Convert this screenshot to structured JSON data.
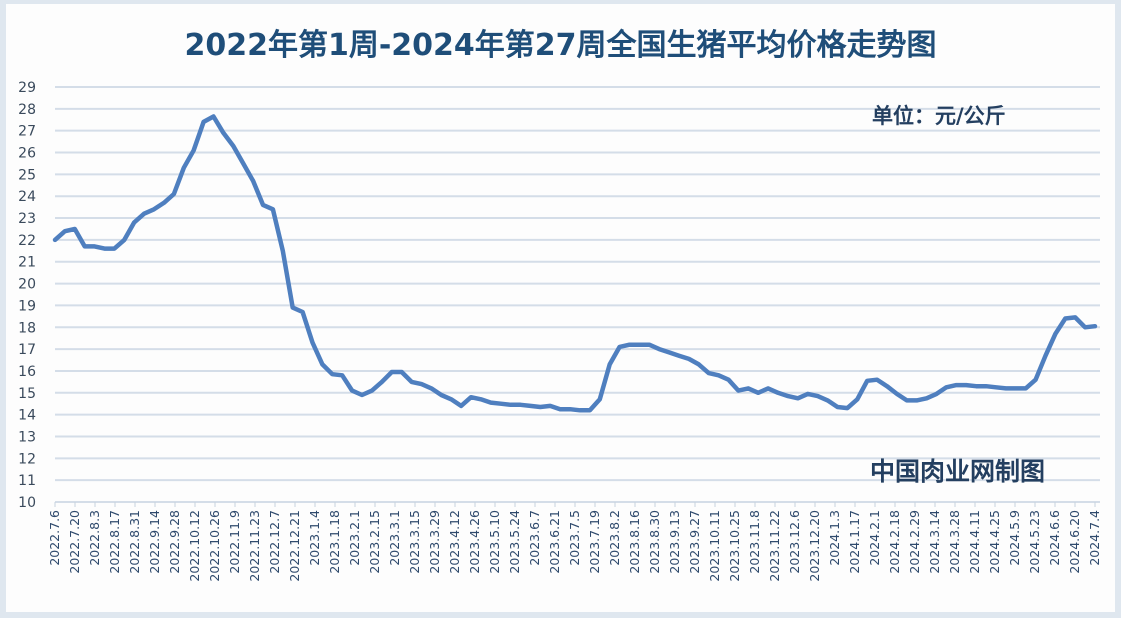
{
  "chart_data": {
    "type": "line",
    "title": "2022年第1周-2024年第27周全国生猪平均价格走势图",
    "unit_label": "单位：元/公斤",
    "source_label": "中国肉业网制图",
    "xlabel": "",
    "ylabel": "元/公斤",
    "ylim": [
      10,
      29
    ],
    "yticks": [
      10,
      11,
      12,
      13,
      14,
      15,
      16,
      17,
      18,
      19,
      20,
      21,
      22,
      23,
      24,
      25,
      26,
      27,
      28,
      29
    ],
    "grid": true,
    "legend": null,
    "line_color": "#4f7fbf",
    "x_tick_labels": [
      "2022.7.6",
      "2022.7.20",
      "2022.8.3",
      "2022.8.17",
      "2022.8.31",
      "2022.9.14",
      "2022.9.28",
      "2022.10.12",
      "2022.10.26",
      "2022.11.9",
      "2022.11.23",
      "2022.12.7",
      "2022.12.21",
      "2023.1.4",
      "2023.1.18",
      "2023.2.1",
      "2023.2.15",
      "2023.3.1",
      "2023.3.15",
      "2023.3.29",
      "2023.4.12",
      "2023.4.26",
      "2023.5.10",
      "2023.5.24",
      "2023.6.7",
      "2023.6.21",
      "2023.7.5",
      "2023.7.19",
      "2023.8.2",
      "2023.8.16",
      "2023.8.30",
      "2023.9.13",
      "2023.9.27",
      "2023.10.11",
      "2023.10.25",
      "2023.11.8",
      "2023.11.22",
      "2023.12.6",
      "2023.12.20",
      "2024.1.3",
      "2024.1.17",
      "2024.2.1",
      "2024.2.18",
      "2024.2.29",
      "2024.3.14",
      "2024.3.28",
      "2024.4.11",
      "2024.4.25",
      "2024.5.9",
      "2024.5.23",
      "2024.6.6",
      "2024.6.20",
      "2024.7.4"
    ],
    "series": [
      {
        "name": "全国生猪平均价格",
        "values": [
          22.0,
          22.4,
          22.5,
          21.7,
          21.7,
          21.6,
          21.6,
          22.0,
          22.8,
          23.2,
          23.4,
          23.7,
          24.1,
          25.3,
          26.1,
          27.4,
          27.65,
          26.9,
          26.3,
          25.5,
          24.7,
          23.6,
          23.4,
          21.5,
          18.9,
          18.7,
          17.3,
          16.3,
          15.85,
          15.8,
          15.1,
          14.9,
          15.1,
          15.5,
          15.95,
          15.95,
          15.5,
          15.4,
          15.2,
          14.9,
          14.7,
          14.4,
          14.8,
          14.7,
          14.55,
          14.5,
          14.45,
          14.45,
          14.4,
          14.35,
          14.4,
          14.25,
          14.25,
          14.2,
          14.2,
          14.7,
          16.3,
          17.1,
          17.2,
          17.2,
          17.2,
          17.0,
          16.85,
          16.7,
          16.55,
          16.3,
          15.9,
          15.8,
          15.6,
          15.1,
          15.2,
          15.0,
          15.2,
          15.0,
          14.85,
          14.75,
          14.95,
          14.85,
          14.65,
          14.35,
          14.3,
          14.7,
          15.55,
          15.6,
          15.3,
          14.95,
          14.65,
          14.65,
          14.75,
          14.95,
          15.25,
          15.35,
          15.35,
          15.3,
          15.3,
          15.25,
          15.2,
          15.2,
          15.2,
          15.6,
          16.7,
          17.7,
          18.4,
          18.45,
          18.0,
          18.05
        ]
      }
    ]
  }
}
